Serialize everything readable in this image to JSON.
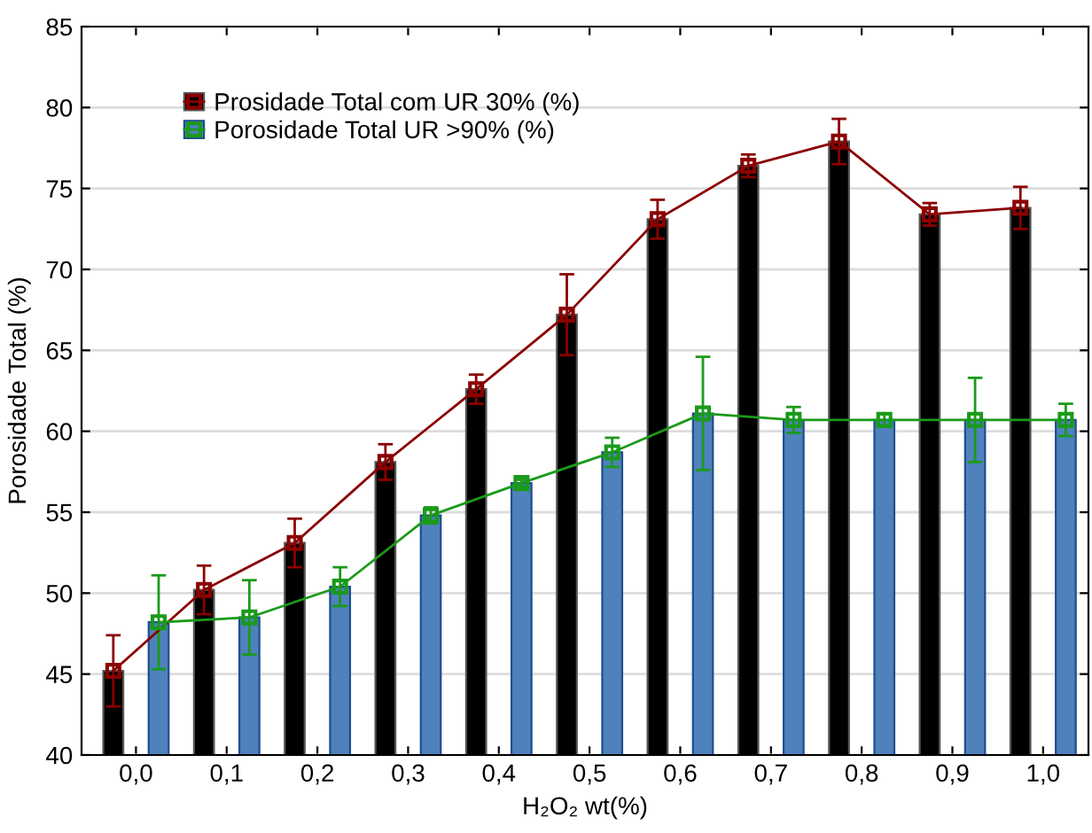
{
  "chart_data": {
    "type": "bar",
    "xlabel": "H₂O₂ wt(%)",
    "ylabel": "Porosidade Total (%)",
    "categories": [
      "0,0",
      "0,1",
      "0,2",
      "0,3",
      "0,4",
      "0,5",
      "0,6",
      "0,7",
      "0,8",
      "0,9",
      "1,0"
    ],
    "ylim": [
      40,
      85
    ],
    "yticks": [
      40,
      45,
      50,
      55,
      60,
      65,
      70,
      75,
      80,
      85
    ],
    "grid": "y",
    "legend": "top left",
    "marker": "square",
    "series": [
      {
        "name": "Prosidade Total com UR 30% (%)",
        "color": "#000000",
        "values": [
          45.2,
          50.2,
          53.1,
          58.1,
          62.6,
          67.2,
          73.1,
          76.4,
          77.9,
          73.4,
          73.8
        ]
      },
      {
        "name": "Porosidade Total UR >90% (%)",
        "color": "#4f81bd",
        "values": [
          48.2,
          48.5,
          50.4,
          54.8,
          56.8,
          58.7,
          61.1,
          60.7,
          60.7,
          60.7,
          60.7
        ]
      },
      {
        "type": "line",
        "color": "#8b0000",
        "values": [
          45.2,
          50.2,
          53.1,
          58.1,
          62.6,
          67.2,
          73.1,
          76.4,
          77.9,
          73.4,
          73.8
        ],
        "errors": [
          2.2,
          1.5,
          1.5,
          1.1,
          0.9,
          2.5,
          1.2,
          0.7,
          1.4,
          0.7,
          1.3
        ]
      },
      {
        "type": "line",
        "color": "#1a9a1a",
        "values": [
          48.2,
          48.5,
          50.4,
          54.8,
          56.8,
          58.7,
          61.1,
          60.7,
          60.7,
          60.7,
          60.7
        ],
        "errors": [
          2.9,
          2.3,
          1.2,
          0.5,
          0.2,
          0.9,
          3.5,
          0.8,
          0.4,
          2.6,
          1.0
        ]
      }
    ]
  }
}
